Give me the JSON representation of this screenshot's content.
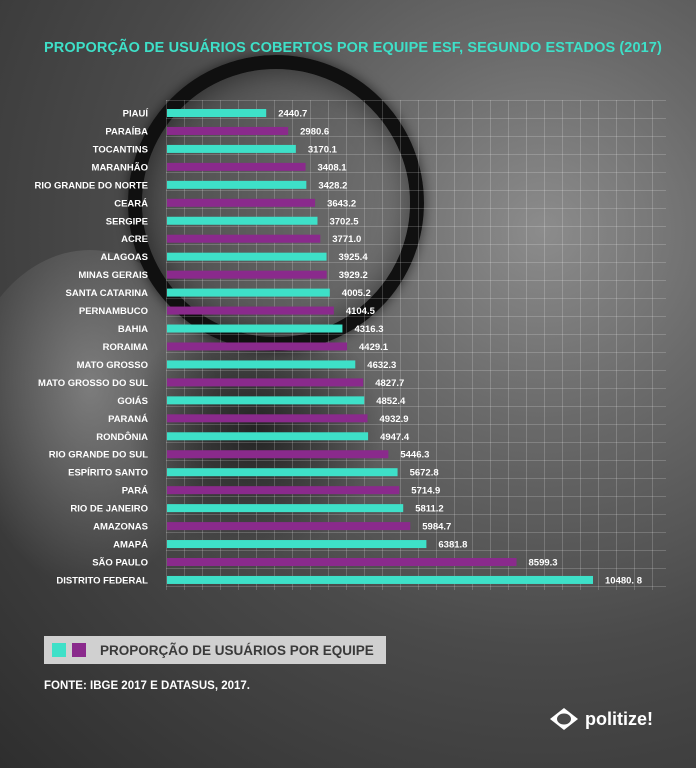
{
  "colors": {
    "primary": "#3ee0c8",
    "secondary": "#8a2a8c",
    "title": "#3ee0c8",
    "legend_bg": "#d0d0d0"
  },
  "legend": {
    "label": "PROPORÇÃO DE USUÁRIOS POR EQUIPE"
  },
  "source": "FONTE: IBGE 2017 E DATASUS, 2017.",
  "brand": {
    "name": "politize!",
    "icon": "politize-logo-icon"
  },
  "chart_data": {
    "type": "bar",
    "orientation": "horizontal",
    "title": "PROPORÇÃO DE USUÁRIOS COBERTOS POR EQUIPE ESF, SEGUNDO ESTADOS (2017)",
    "xlabel": "",
    "ylabel": "",
    "grid": true,
    "legend_position": "bottom-left",
    "bar_colors": "alternating",
    "categories": [
      "PIAUÍ",
      "PARAÍBA",
      "TOCANTINS",
      "MARANHÃO",
      "RIO GRANDE DO NORTE",
      "CEARÁ",
      "SERGIPE",
      "ACRE",
      "ALAGOAS",
      "MINAS GERAIS",
      "SANTA CATARINA",
      "PERNAMBUCO",
      "BAHIA",
      "RORAIMA",
      "MATO GROSSO",
      "MATO GROSSO DO SUL",
      "GOIÁS",
      "PARANÁ",
      "RONDÔNIA",
      "RIO GRANDE DO SUL",
      "ESPÍRITO SANTO",
      "PARÁ",
      "RIO DE JANEIRO",
      "AMAZONAS",
      "AMAPÁ",
      "SÃO PAULO",
      "DISTRITO FEDERAL"
    ],
    "values": [
      2440.7,
      2980.6,
      3170.1,
      3408.1,
      3428.2,
      3643.2,
      3702.5,
      3771.0,
      3925.4,
      3929.2,
      4005.2,
      4104.5,
      4316.3,
      4429.1,
      4632.3,
      4827.7,
      4852.4,
      4932.9,
      4947.4,
      5446.3,
      5672.8,
      5714.9,
      5811.2,
      5984.7,
      6381.8,
      8599.3,
      10480.8
    ],
    "value_labels": [
      "2440.7",
      "2980.6",
      "3170.1",
      "3408.1",
      "3428.2",
      "3643.2",
      "3702.5",
      "3771.0",
      "3925.4",
      "3929.2",
      "4005.2",
      "4104.5",
      "4316.3",
      "4429.1",
      "4632.3",
      "4827.7",
      "4852.4",
      "4932.9",
      "4947.4",
      "5446.3",
      "5672.8",
      "5714.9",
      "5811.2",
      "5984.7",
      "6381.8",
      "8599.3",
      "10480. 8"
    ]
  }
}
